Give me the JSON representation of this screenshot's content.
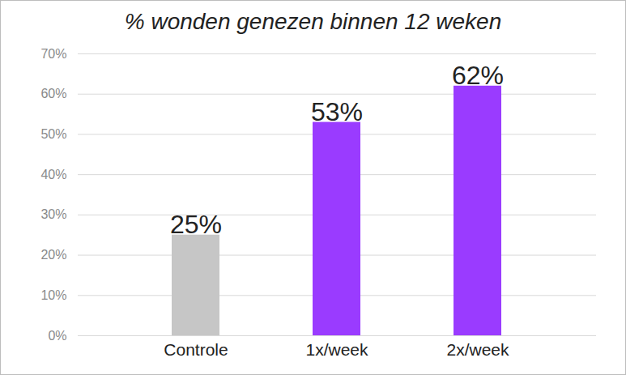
{
  "chart_data": {
    "type": "bar",
    "title": "% wonden genezen binnen 12 weken",
    "categories": [
      "Controle",
      "1x/week",
      "2x/week"
    ],
    "values": [
      25,
      53,
      62
    ],
    "value_labels": [
      "25%",
      "53%",
      "62%"
    ],
    "colors": [
      "#c6c6c6",
      "#9a3bff",
      "#9a3bff"
    ],
    "ylim": [
      0,
      70
    ],
    "yticks": [
      {
        "value": 0,
        "label": "0%"
      },
      {
        "value": 10,
        "label": "10%"
      },
      {
        "value": 20,
        "label": "20%"
      },
      {
        "value": 30,
        "label": "30%"
      },
      {
        "value": 40,
        "label": "40%"
      },
      {
        "value": 50,
        "label": "50%"
      },
      {
        "value": 60,
        "label": "60%"
      },
      {
        "value": 70,
        "label": "70%"
      }
    ],
    "grid": true,
    "data_labels": true
  }
}
